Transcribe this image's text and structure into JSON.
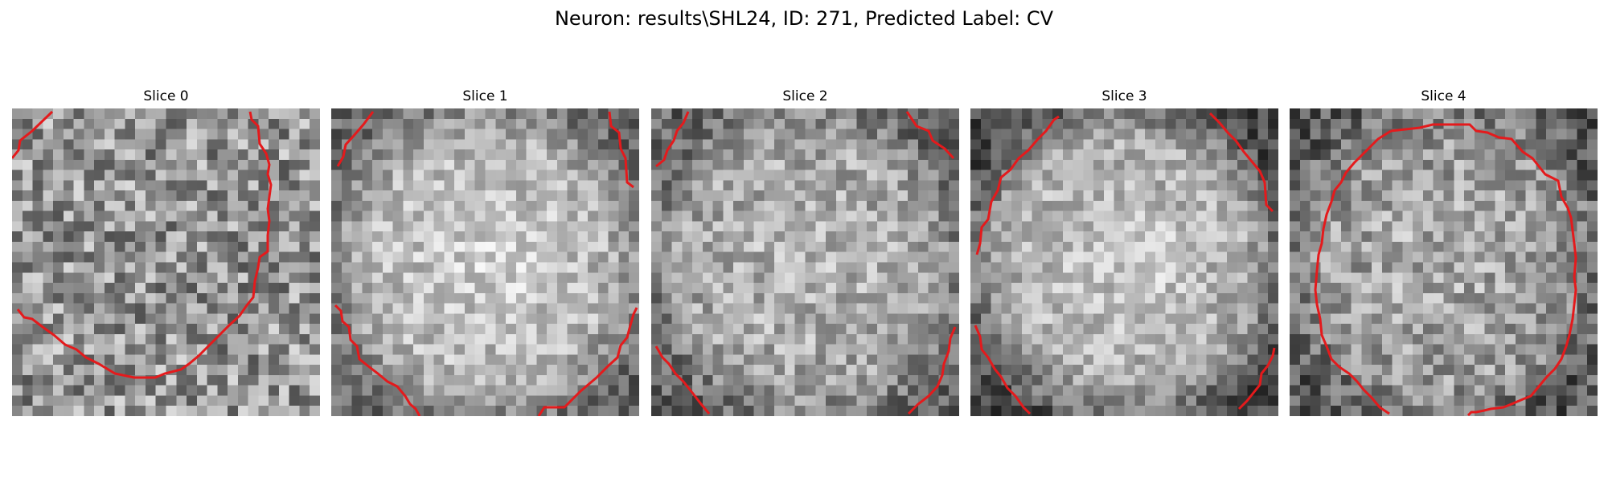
{
  "figure": {
    "title": "Neuron: results\\SHL24, ID: 271, Predicted Label: CV",
    "contour_color": "#e41a1c",
    "colormap": "gray",
    "panels": [
      {
        "title": "Slice 0"
      },
      {
        "title": "Slice 1"
      },
      {
        "title": "Slice 2"
      },
      {
        "title": "Slice 3"
      },
      {
        "title": "Slice 4"
      }
    ]
  }
}
